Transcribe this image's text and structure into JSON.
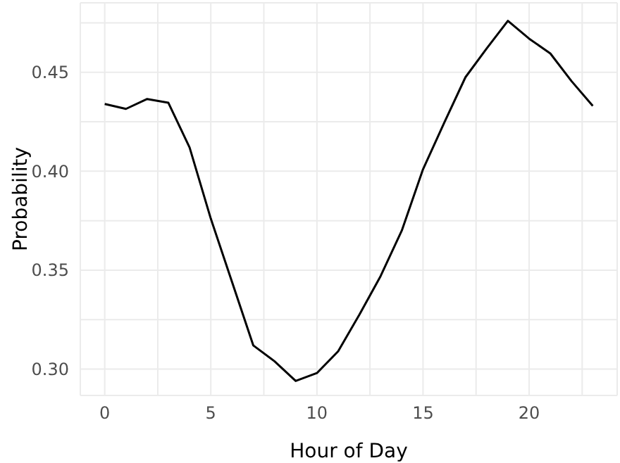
{
  "chart_data": {
    "type": "line",
    "xlabel": "Hour of Day",
    "ylabel": "Probability",
    "x": [
      0,
      1,
      2,
      3,
      4,
      5,
      6,
      7,
      8,
      9,
      10,
      11,
      12,
      13,
      14,
      15,
      16,
      17,
      18,
      19,
      20,
      21,
      22,
      23
    ],
    "series": [
      {
        "color": "#000000",
        "values": [
          0.434,
          0.4315,
          0.4365,
          0.4346,
          0.412,
          0.376,
          0.344,
          0.312,
          0.304,
          0.294,
          0.298,
          0.309,
          0.3275,
          0.347,
          0.37,
          0.401,
          0.4245,
          0.4475,
          0.462,
          0.476,
          0.467,
          0.4595,
          0.4455,
          0.433
        ]
      }
    ],
    "xlim": [
      -1.15,
      24.15
    ],
    "ylim": [
      0.2867,
      0.4851
    ],
    "xticks": [
      0,
      {
        "value": 2.5,
        "label": null
      },
      5,
      {
        "value": 7.5,
        "label": null
      },
      10,
      {
        "value": 12.5,
        "label": null
      },
      15,
      {
        "value": 17.5,
        "label": null
      },
      20,
      {
        "value": 22.5,
        "label": null
      }
    ],
    "yticks": [
      {
        "value": 0.3,
        "label": "0.30"
      },
      {
        "value": 0.325,
        "label": null
      },
      {
        "value": 0.35,
        "label": "0.35"
      },
      {
        "value": 0.375,
        "label": null
      },
      {
        "value": 0.4,
        "label": "0.40"
      },
      {
        "value": 0.425,
        "label": null
      },
      {
        "value": 0.45,
        "label": "0.45"
      },
      {
        "value": 0.475,
        "label": null
      }
    ],
    "grid": true,
    "marker": "none",
    "line_style": "solid",
    "legend": false
  }
}
